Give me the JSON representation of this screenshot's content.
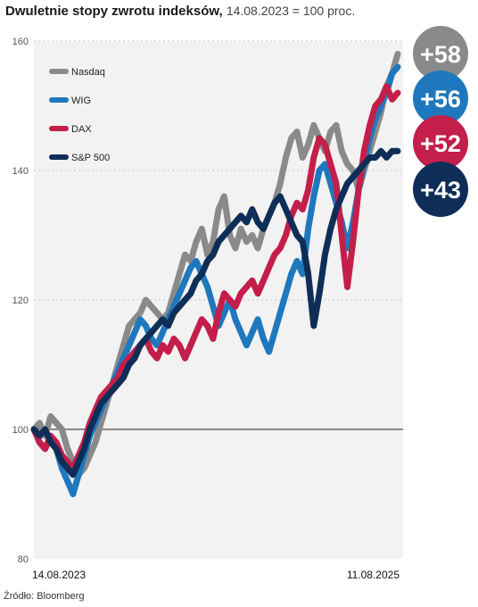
{
  "title": {
    "main": "Dwuletnie stopy zwrotu indeksów,",
    "sub": "14.08.2023 = 100 proc."
  },
  "source": "Źródło: Bloomberg",
  "chart_data": {
    "type": "line",
    "x_labels": [
      "14.08.2023",
      "11.08.2025"
    ],
    "ylim": [
      80,
      160
    ],
    "y_ticks": [
      80,
      100,
      120,
      140,
      160
    ],
    "baseline": 100,
    "grid": "dashed horizontal",
    "legend_position": "top-left",
    "series": [
      {
        "name": "Nasdaq",
        "color": "#8a8a8a",
        "badge": "+58",
        "values": [
          100,
          101,
          99,
          102,
          101,
          100,
          97,
          95,
          93,
          94,
          96,
          98,
          101,
          104,
          107,
          110,
          113,
          116,
          117,
          118,
          120,
          119,
          118,
          117,
          118,
          121,
          124,
          127,
          126,
          129,
          131,
          127,
          129,
          134,
          136,
          130,
          128,
          131,
          129,
          130,
          128,
          131,
          133,
          135,
          138,
          142,
          145,
          146,
          142,
          144,
          147,
          145,
          143,
          146,
          147,
          143,
          141,
          140,
          137,
          140,
          143,
          146,
          149,
          153,
          155,
          158
        ]
      },
      {
        "name": "WIG",
        "color": "#1f78bd",
        "badge": "+56",
        "values": [
          100,
          98,
          97,
          99,
          97,
          94,
          92,
          90,
          93,
          96,
          99,
          101,
          103,
          105,
          107,
          109,
          111,
          113,
          115,
          117,
          116,
          114,
          113,
          115,
          117,
          119,
          121,
          123,
          125,
          126,
          124,
          122,
          119,
          116,
          118,
          120,
          117,
          115,
          113,
          115,
          117,
          114,
          112,
          115,
          118,
          121,
          124,
          126,
          124,
          131,
          136,
          140,
          141,
          138,
          135,
          132,
          128,
          132,
          137,
          141,
          145,
          148,
          150,
          152,
          155,
          156
        ]
      },
      {
        "name": "DAX",
        "color": "#c41e4a",
        "badge": "+52",
        "values": [
          100,
          98,
          97,
          99,
          98,
          96,
          95,
          94,
          96,
          98,
          101,
          103,
          105,
          106,
          107,
          108,
          110,
          111,
          112,
          113,
          114,
          112,
          111,
          113,
          112,
          114,
          113,
          111,
          113,
          115,
          117,
          116,
          114,
          118,
          121,
          120,
          119,
          121,
          122,
          123,
          121,
          123,
          125,
          127,
          128,
          130,
          133,
          135,
          134,
          137,
          142,
          145,
          144,
          141,
          138,
          130,
          122,
          129,
          137,
          143,
          147,
          150,
          151,
          153,
          151,
          152
        ]
      },
      {
        "name": "S&P 500",
        "color": "#0f2e57",
        "badge": "+43",
        "values": [
          100,
          99,
          100,
          98,
          97,
          95,
          94,
          93,
          95,
          97,
          100,
          102,
          104,
          105,
          106,
          107,
          108,
          110,
          111,
          113,
          114,
          115,
          116,
          117,
          116,
          118,
          119,
          120,
          121,
          123,
          124,
          126,
          127,
          129,
          130,
          131,
          132,
          133,
          132,
          134,
          132,
          131,
          133,
          135,
          136,
          134,
          132,
          130,
          129,
          124,
          116,
          121,
          127,
          131,
          134,
          136,
          138,
          139,
          140,
          141,
          142,
          142,
          143,
          142,
          143,
          143
        ]
      }
    ]
  }
}
